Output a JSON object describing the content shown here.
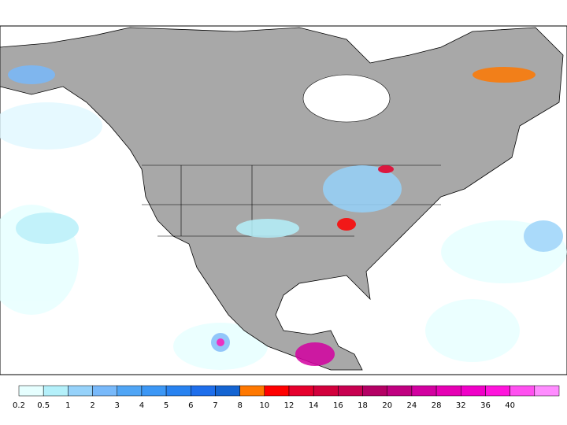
{
  "legend": {
    "labels": [
      0.2,
      0.5,
      1,
      2,
      3,
      4,
      5,
      6,
      7,
      8,
      10,
      12,
      14,
      16,
      18,
      20,
      24,
      28,
      32,
      36,
      40
    ],
    "colors": [
      "#e6ffff",
      "#b4f0fa",
      "#96d2fa",
      "#78b9fa",
      "#50a5f5",
      "#3c97f5",
      "#2882f0",
      "#1e6eeb",
      "#1464d2",
      "#ff7800",
      "#ff0000",
      "#e6002d",
      "#d2003c",
      "#c80050",
      "#b40064",
      "#c00080",
      "#d200a0",
      "#e600b4",
      "#f000c8",
      "#ff14dc",
      "#ff50f0",
      "#ff8cff"
    ]
  }
}
